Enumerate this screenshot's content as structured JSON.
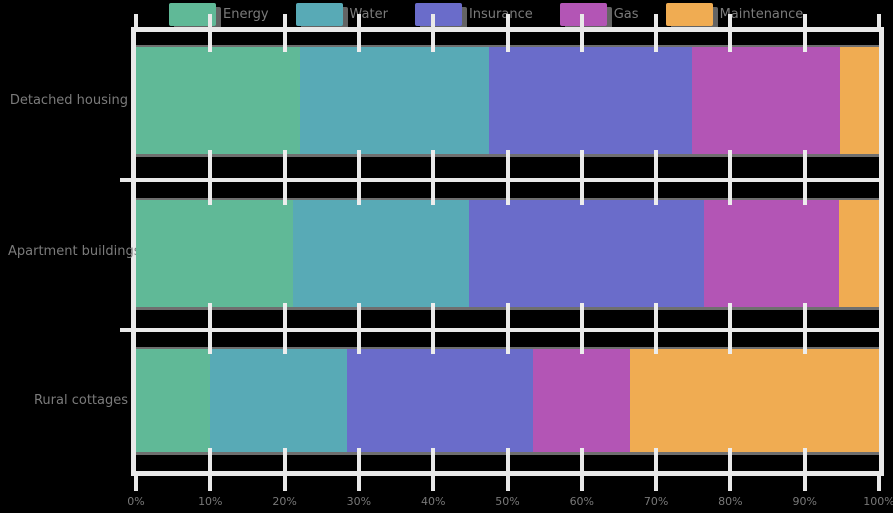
{
  "colors": {
    "series_green": "#60B997",
    "series_teal": "#58AAB6",
    "series_purple": "#6A6CCA",
    "series_magenta": "#B355B5",
    "series_orange": "#F0AC52",
    "grid": "#E9E9E9",
    "bar_edge": "#6F6F6F",
    "text": "#7B7B7B",
    "background": "#000000"
  },
  "legend": {
    "items": [
      {
        "label": "Energy",
        "color": "#60B997"
      },
      {
        "label": "Water",
        "color": "#58AAB6"
      },
      {
        "label": "Insurance",
        "color": "#6A6CCA"
      },
      {
        "label": "Gas",
        "color": "#B355B5"
      },
      {
        "label": "Maintenance",
        "color": "#F0AC52"
      }
    ]
  },
  "chart_data": {
    "type": "bar",
    "orientation": "horizontal",
    "stacked": true,
    "title": "",
    "xlabel": "",
    "ylabel": "",
    "xlim": [
      0,
      100
    ],
    "grid": true,
    "legend_position": "top",
    "categories": [
      "Detached housing",
      "Apartment buildings",
      "Rural cottages"
    ],
    "x_tick_labels": [
      "0%",
      "10%",
      "20%",
      "30%",
      "40%",
      "50%",
      "60%",
      "70%",
      "80%",
      "90%",
      "100%"
    ],
    "series": [
      {
        "name": "Energy",
        "color": "#60B997",
        "values": [
          22.1,
          21.1,
          9.9
        ]
      },
      {
        "name": "Water",
        "color": "#58AAB6",
        "values": [
          25.4,
          23.7,
          18.5
        ]
      },
      {
        "name": "Insurance",
        "color": "#6A6CCA",
        "values": [
          27.4,
          31.7,
          25.0
        ]
      },
      {
        "name": "Gas",
        "color": "#B355B5",
        "values": [
          19.8,
          18.1,
          13.1
        ]
      },
      {
        "name": "Maintenance",
        "color": "#F0AC52",
        "values": [
          5.3,
          5.4,
          33.5
        ]
      }
    ]
  }
}
